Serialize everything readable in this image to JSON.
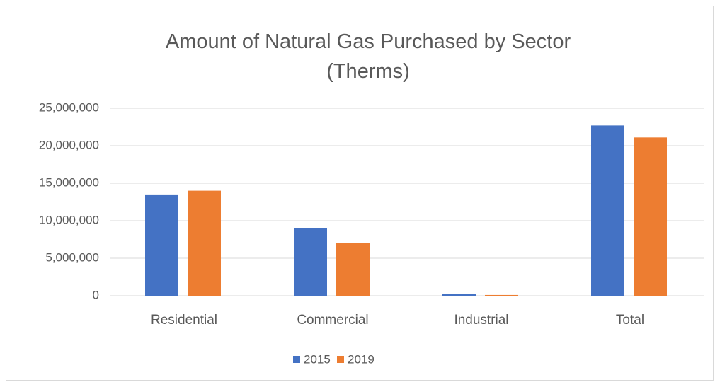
{
  "chart_data": {
    "type": "bar",
    "title": "Amount of Natural Gas Purchased by Sector (Therms)",
    "categories": [
      "Residential",
      "Commercial",
      "Industrial",
      "Total"
    ],
    "series": [
      {
        "name": "2015",
        "color": "#4472c4",
        "values": [
          13500000,
          9000000,
          200000,
          22700000
        ]
      },
      {
        "name": "2019",
        "color": "#ed7d31",
        "values": [
          14000000,
          7000000,
          100000,
          21100000
        ]
      }
    ],
    "ylim": [
      0,
      25000000
    ],
    "yticks": [
      0,
      {
        "value": 5000000,
        "label": "5,000,000"
      },
      {
        "value": 10000000,
        "label": "10,000,000"
      },
      {
        "value": 15000000,
        "label": "15,000,000"
      },
      {
        "value": 20000000,
        "label": "20,000,000"
      },
      {
        "value": 25000000,
        "label": "25,000,000"
      }
    ],
    "grid": true,
    "legend": "bottom"
  }
}
